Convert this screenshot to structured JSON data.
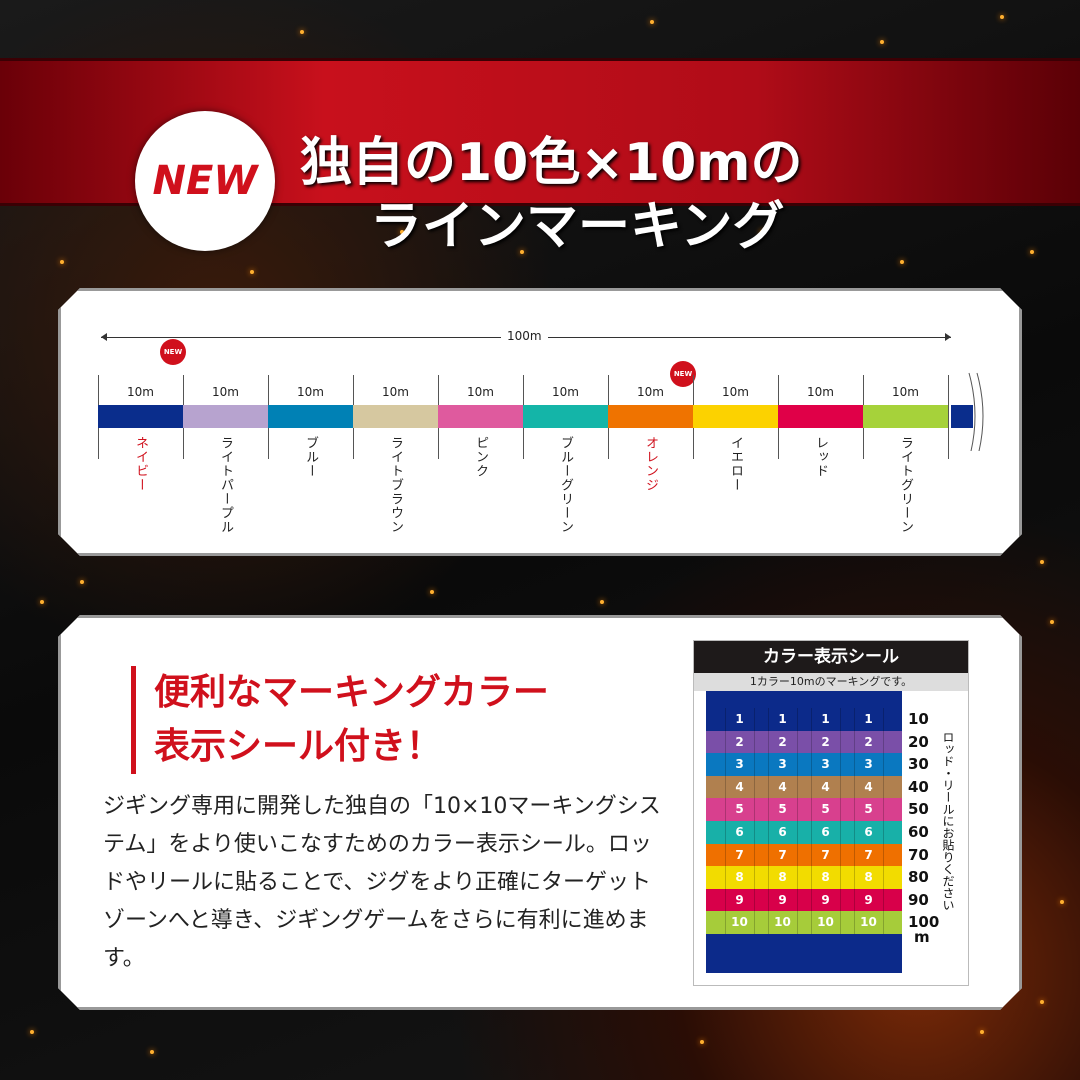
{
  "header": {
    "badge": "NEW",
    "title_line1": "独自の10色×10mの",
    "title_line2": "ラインマーキング"
  },
  "diagram": {
    "total_length": "100m",
    "new_badge": "NEW",
    "segments": [
      {
        "length": "10m",
        "name": "ネイビー",
        "color": "#0a2d8c",
        "new": true
      },
      {
        "length": "10m",
        "name": "ライトパープル",
        "color": "#b7a3cf",
        "new": false
      },
      {
        "length": "10m",
        "name": "ブルー",
        "color": "#0081b5",
        "new": false
      },
      {
        "length": "10m",
        "name": "ライトブラウン",
        "color": "#d6c8a0",
        "new": false
      },
      {
        "length": "10m",
        "name": "ピンク",
        "color": "#df5a9e",
        "new": false
      },
      {
        "length": "10m",
        "name": "ブルーグリーン",
        "color": "#14b5a8",
        "new": false
      },
      {
        "length": "10m",
        "name": "オレンジ",
        "color": "#ef7300",
        "new": true
      },
      {
        "length": "10m",
        "name": "イエロー",
        "color": "#fcd200",
        "new": false
      },
      {
        "length": "10m",
        "name": "レッド",
        "color": "#e00048",
        "new": false
      },
      {
        "length": "10m",
        "name": "ライトグリーン",
        "color": "#a6d23a",
        "new": false
      }
    ]
  },
  "feature": {
    "heading_line1": "便利なマーキングカラー",
    "heading_line2": "表示シール付き！",
    "body": "ジギング専用に開発した独自の「10×10マーキングシステム」をより使いこなすためのカラー表示シール。ロッドやリールに貼ることで、ジグをより正確にターゲットゾーンへと導き、ジギングゲームをさらに有利に進めます。"
  },
  "sticker": {
    "title": "カラー表示シール",
    "subtitle": "1カラー10mのマーキングです。",
    "note": "ロッド・リールにお貼りください",
    "rows": [
      {
        "num": "1",
        "meter": "10",
        "color": "#0c2a8a"
      },
      {
        "num": "2",
        "meter": "20",
        "color": "#7a4fa8"
      },
      {
        "num": "3",
        "meter": "30",
        "color": "#0a78c0"
      },
      {
        "num": "4",
        "meter": "40",
        "color": "#b0804f"
      },
      {
        "num": "5",
        "meter": "50",
        "color": "#d8408e"
      },
      {
        "num": "6",
        "meter": "60",
        "color": "#18b0a8"
      },
      {
        "num": "7",
        "meter": "70",
        "color": "#ef7000"
      },
      {
        "num": "8",
        "meter": "80",
        "color": "#f2dc00"
      },
      {
        "num": "9",
        "meter": "90",
        "color": "#d8004a"
      },
      {
        "num": "10",
        "meter": "100",
        "color": "#a6cc3a"
      }
    ],
    "unit": "m"
  }
}
